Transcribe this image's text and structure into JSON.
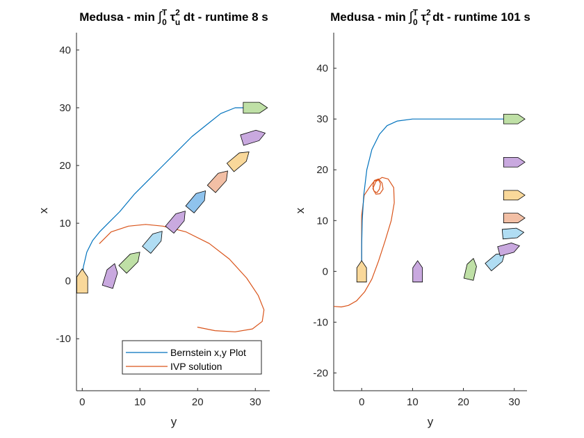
{
  "chart_data": [
    {
      "type": "line",
      "title_prefix": "Medusa - min ",
      "title_mid": " dt - runtime 8 s",
      "title_tau_sub": "u",
      "title_int_sup": "T",
      "title_int_sub": "0",
      "title_tau_sup": "2",
      "xlabel": "y",
      "ylabel": "x",
      "xlim": [
        -1,
        32.5
      ],
      "ylim": [
        -19,
        43
      ],
      "xticks": [
        0,
        10,
        20,
        30
      ],
      "yticks": [
        -10,
        0,
        10,
        20,
        30,
        40
      ],
      "legend": {
        "placement": "bottom-right",
        "entries": [
          {
            "label": "Bernstein x,y Plot",
            "color": "#0072BD"
          },
          {
            "label": "IVP solution",
            "color": "#D95319"
          }
        ]
      },
      "series": [
        {
          "name": "Bernstein x,y Plot",
          "color": "#0072BD",
          "x": [
            0,
            0.2,
            0.8,
            1.8,
            3,
            4.5,
            6.5,
            9,
            11.5,
            14,
            16.5,
            19,
            21.5,
            24,
            26.5,
            28.5,
            30
          ],
          "y": [
            0,
            2.5,
            5,
            7,
            8.5,
            10,
            12,
            15,
            17.5,
            20,
            22.5,
            25,
            27,
            29,
            30,
            30,
            30
          ]
        },
        {
          "name": "IVP solution",
          "color": "#D95319",
          "x": [
            3,
            5,
            8,
            11,
            14,
            18,
            22,
            25.5,
            28.5,
            30.5,
            31.5,
            31.2,
            29.5,
            26.5,
            23,
            20
          ],
          "y": [
            6.5,
            8.5,
            9.5,
            9.8,
            9.5,
            8.5,
            6.5,
            3.8,
            0.5,
            -2.5,
            -5,
            -7,
            -8.3,
            -8.8,
            -8.6,
            -8
          ]
        }
      ],
      "vehicles": [
        {
          "x": 0,
          "y": 0,
          "heading_deg": 0,
          "color": "#F9D89A"
        },
        {
          "x": 1,
          "y": 5,
          "heading_deg": 17,
          "color": "#C9A9DF"
        },
        {
          "x": 3.5,
          "y": 8.5,
          "heading_deg": 45,
          "color": "#BFE0A6"
        },
        {
          "x": 7,
          "y": 12.5,
          "heading_deg": 40,
          "color": "#B0DDF3"
        },
        {
          "x": 10.5,
          "y": 16.5,
          "heading_deg": 40,
          "color": "#C9A9DF"
        },
        {
          "x": 14,
          "y": 20,
          "heading_deg": 40,
          "color": "#8FC3ED"
        },
        {
          "x": 17.5,
          "y": 23.8,
          "heading_deg": 42,
          "color": "#F2BFA5"
        },
        {
          "x": 21,
          "y": 27.3,
          "heading_deg": 50,
          "color": "#F9D89A"
        },
        {
          "x": 25,
          "y": 29.7,
          "heading_deg": 73,
          "color": "#C9A9DF"
        },
        {
          "x": 30,
          "y": 30,
          "heading_deg": 90,
          "color": "#BFE0A6"
        }
      ]
    },
    {
      "type": "line",
      "title_prefix": "Medusa - min ",
      "title_mid": " dt - runtime 101 s",
      "title_tau_sub": "r",
      "title_int_sup": "T",
      "title_int_sub": "0",
      "title_tau_sup": "2",
      "xlabel": "y",
      "ylabel": "x",
      "xlim": [
        -5.5,
        32.5
      ],
      "ylim": [
        -23.5,
        47
      ],
      "xticks": [
        0,
        10,
        20,
        30
      ],
      "yticks": [
        -20,
        -10,
        0,
        10,
        20,
        30,
        40
      ],
      "series": [
        {
          "name": "Bernstein x,y Plot",
          "color": "#0072BD",
          "x": [
            0,
            0,
            0.1,
            0.4,
            1,
            2,
            3.5,
            5,
            7,
            10,
            14,
            20,
            26,
            30
          ],
          "y": [
            0,
            5,
            10,
            15,
            20,
            24,
            27,
            28.7,
            29.6,
            30,
            30,
            30,
            30,
            30
          ]
        },
        {
          "name": "IVP solution",
          "color": "#D95319",
          "x": [
            0,
            0,
            0.5,
            1.5,
            2.5,
            3.3,
            3.7,
            3.5,
            3,
            2.4,
            2.2,
            2.5,
            3.3,
            4,
            4.2,
            3.6,
            2.8,
            2.2,
            2.8,
            4,
            5.2,
            6.3,
            6.4,
            5.8,
            4.6,
            3.3,
            2,
            0.6,
            -1,
            -2.6,
            -4,
            -5.5
          ],
          "y": [
            0,
            11,
            15,
            16.5,
            17.8,
            18,
            17.3,
            16.2,
            15.5,
            15.8,
            16.8,
            17.9,
            18.2,
            17.4,
            16.2,
            15.3,
            15.2,
            16.3,
            17.7,
            18.5,
            18.2,
            16.5,
            13.5,
            10,
            6,
            2,
            -1.5,
            -4,
            -5.8,
            -6.7,
            -7,
            -6.9
          ]
        }
      ],
      "vehicles": [
        {
          "x": 0,
          "y": 0,
          "heading_deg": 0,
          "color": "#F9D89A"
        },
        {
          "x": 0,
          "y": 11,
          "heading_deg": 0,
          "color": "#C9A9DF"
        },
        {
          "x": 0.5,
          "y": 21.5,
          "heading_deg": 13,
          "color": "#BFE0A6"
        },
        {
          "x": 2.2,
          "y": 26.5,
          "heading_deg": 50,
          "color": "#B0DDF3"
        },
        {
          "x": 4.5,
          "y": 29,
          "heading_deg": 75,
          "color": "#C9A9DF"
        },
        {
          "x": 7.5,
          "y": 29.8,
          "heading_deg": 85,
          "color": "#B0DDF3"
        },
        {
          "x": 10.5,
          "y": 30,
          "heading_deg": 90,
          "color": "#F2BFA5"
        },
        {
          "x": 15,
          "y": 30,
          "heading_deg": 90,
          "color": "#F9D89A"
        },
        {
          "x": 21.5,
          "y": 30,
          "heading_deg": 90,
          "color": "#C9A9DF"
        },
        {
          "x": 30,
          "y": 30,
          "heading_deg": 90,
          "color": "#BFE0A6"
        }
      ]
    }
  ]
}
